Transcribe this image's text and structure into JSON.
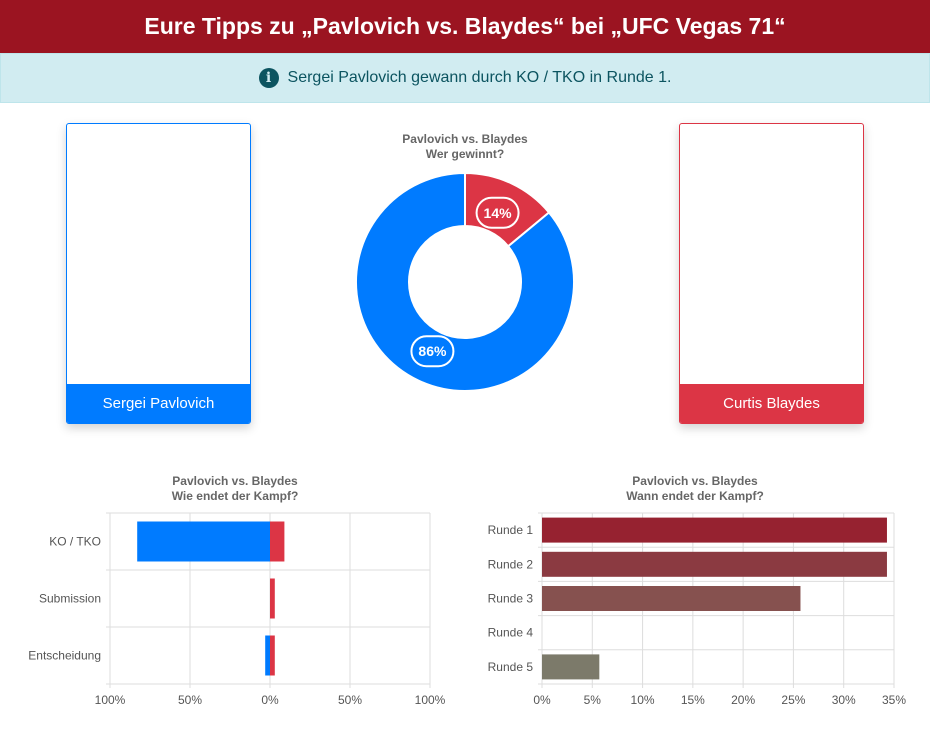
{
  "header": {
    "title": "Eure Tipps zu „Pavlovich vs. Blaydes“ bei „UFC Vegas 71“"
  },
  "alert": {
    "icon": "info-icon",
    "text": "Sergei Pavlovich gewann durch KO / TKO in Runde 1."
  },
  "fighters": [
    {
      "name": "Sergei Pavlovich",
      "color": "#007bff"
    },
    {
      "name": "Curtis Blaydes",
      "color": "#dc3545"
    }
  ],
  "chart_data": [
    {
      "type": "pie",
      "title": "Pavlovich vs. Blaydes",
      "subtitle": "Wer gewinnt?",
      "slices": [
        {
          "label": "Sergei Pavlovich",
          "value": 86,
          "text": "86%",
          "color": "#007bff"
        },
        {
          "label": "Curtis Blaydes",
          "value": 14,
          "text": "14%",
          "color": "#dc3545"
        }
      ]
    },
    {
      "type": "bar",
      "orientation": "horizontal-diverging",
      "title": "Pavlovich vs. Blaydes",
      "subtitle": "Wie endet der Kampf?",
      "categories": [
        "KO / TKO",
        "Submission",
        "Entscheidung"
      ],
      "series": [
        {
          "values": [
            -83,
            0,
            -3
          ],
          "color": "#007bff"
        },
        {
          "values": [
            9,
            3,
            3
          ],
          "color": "#dc3545"
        }
      ],
      "xlim": [
        -100,
        100
      ],
      "xticks": [
        -100,
        -50,
        0,
        50,
        100
      ],
      "xtick_labels": [
        "100%",
        "50%",
        "0%",
        "50%",
        "100%"
      ],
      "grid": true
    },
    {
      "type": "bar",
      "orientation": "horizontal",
      "title": "Pavlovich vs. Blaydes",
      "subtitle": "Wann endet der Kampf?",
      "categories": [
        "Runde 1",
        "Runde 2",
        "Runde 3",
        "Runde 4",
        "Runde 5"
      ],
      "values": [
        34.3,
        34.3,
        25.7,
        0,
        5.7
      ],
      "colors": [
        "#962230",
        "#8b3a41",
        "#86514f",
        "#807060",
        "#7c7a6a"
      ],
      "xlim": [
        0,
        35
      ],
      "xticks": [
        0,
        5,
        10,
        15,
        20,
        25,
        30,
        35
      ],
      "xtick_labels": [
        "0%",
        "5%",
        "10%",
        "15%",
        "20%",
        "25%",
        "30%",
        "35%"
      ],
      "grid": true
    }
  ]
}
